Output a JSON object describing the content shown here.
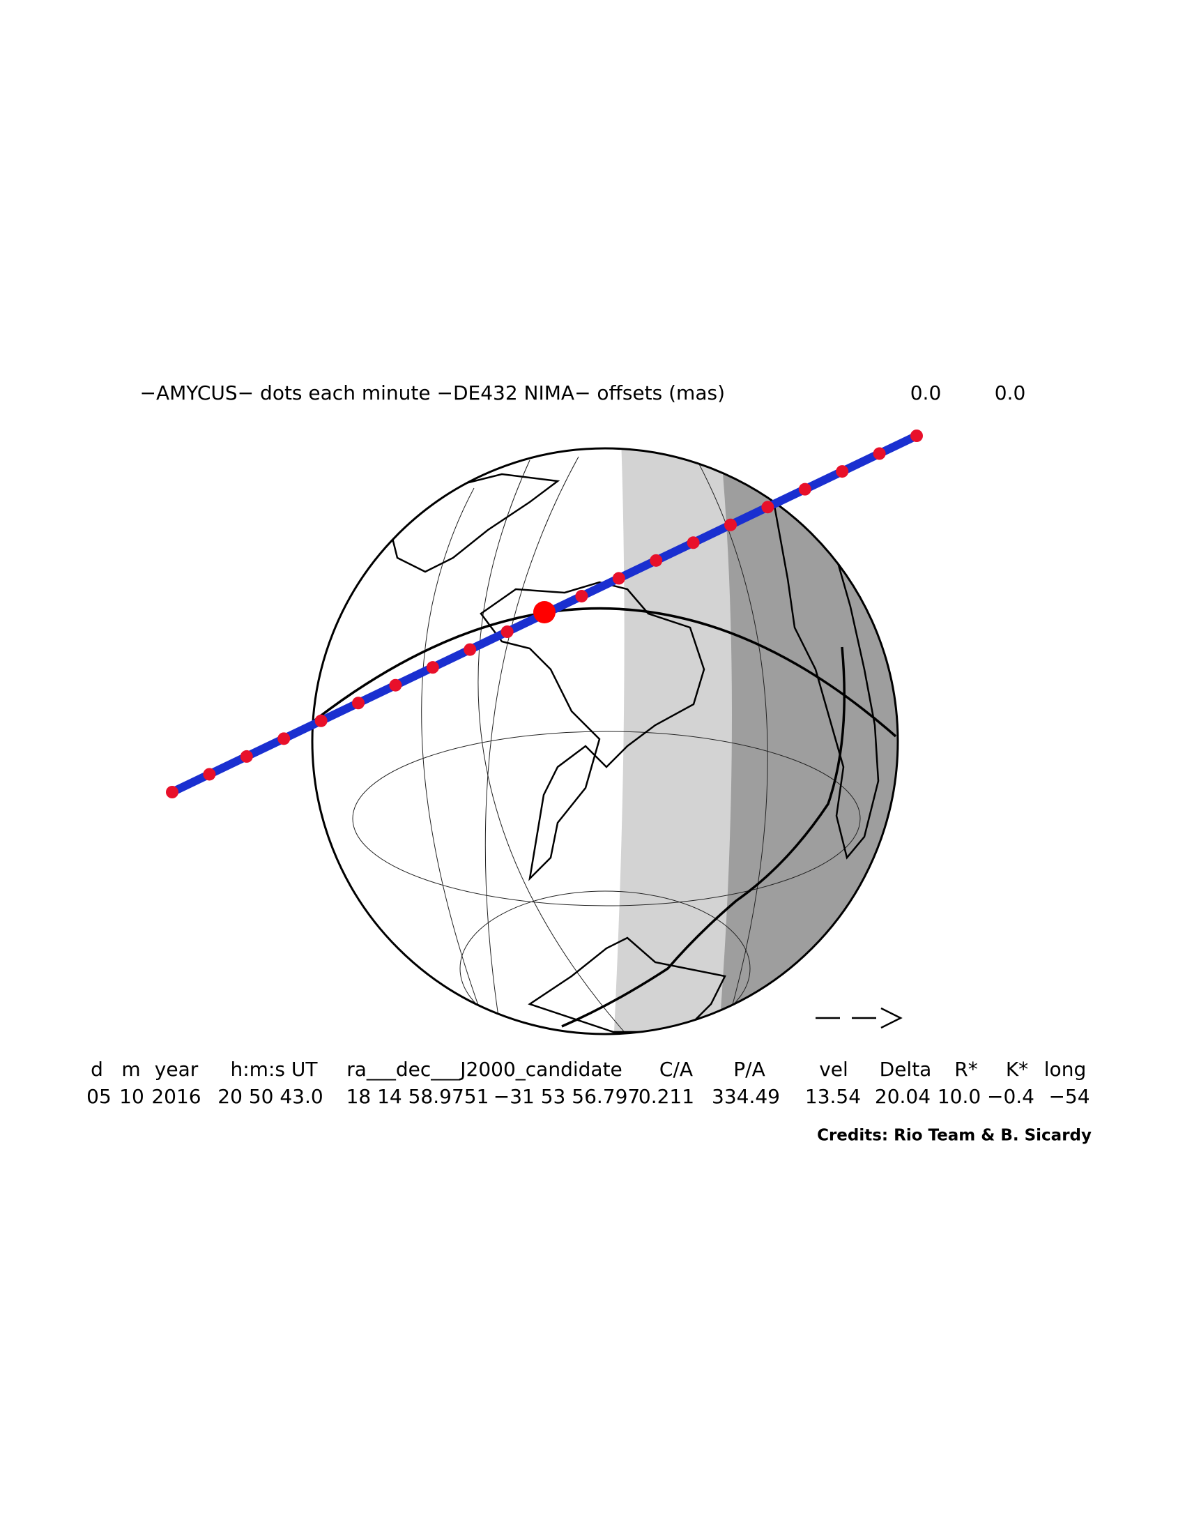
{
  "header": {
    "title": "−AMYCUS− dots each minute −DE432 NIMA− offsets (mas)",
    "offset_ra": "0.0",
    "offset_dec": "0.0"
  },
  "table": {
    "headers": [
      "d",
      "m",
      "year",
      "h:m:s UT",
      "ra___dec___J2000_candidate",
      "C/A",
      "P/A",
      "vel",
      "Delta",
      "R*",
      "K*",
      "long"
    ],
    "values": [
      "05",
      "10",
      "2016",
      "20 50 43.0",
      "18 14 58.9751",
      "−31 53 56.797",
      "0.211",
      "334.49",
      "13.54",
      "20.04",
      "10.0",
      "−0.4",
      "−54"
    ]
  },
  "credits": "Credits: Rio Team & B. Sicardy"
}
